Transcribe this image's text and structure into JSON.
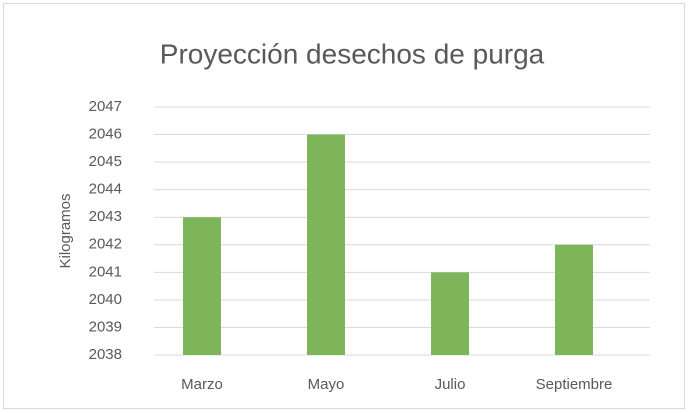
{
  "chart_data": {
    "type": "bar",
    "title": "Proyección desechos de purga",
    "y_label": "Kilogramos",
    "categories": [
      "Marzo",
      "Mayo",
      "Julio",
      "Septiembre"
    ],
    "values": [
      2043,
      2046,
      2041,
      2042
    ],
    "color": "#7fb55a",
    "ylim": [
      2038,
      2047
    ],
    "yticks": [
      2038,
      2039,
      2040,
      2041,
      2042,
      2043,
      2044,
      2045,
      2046,
      2047
    ],
    "grid": true
  }
}
